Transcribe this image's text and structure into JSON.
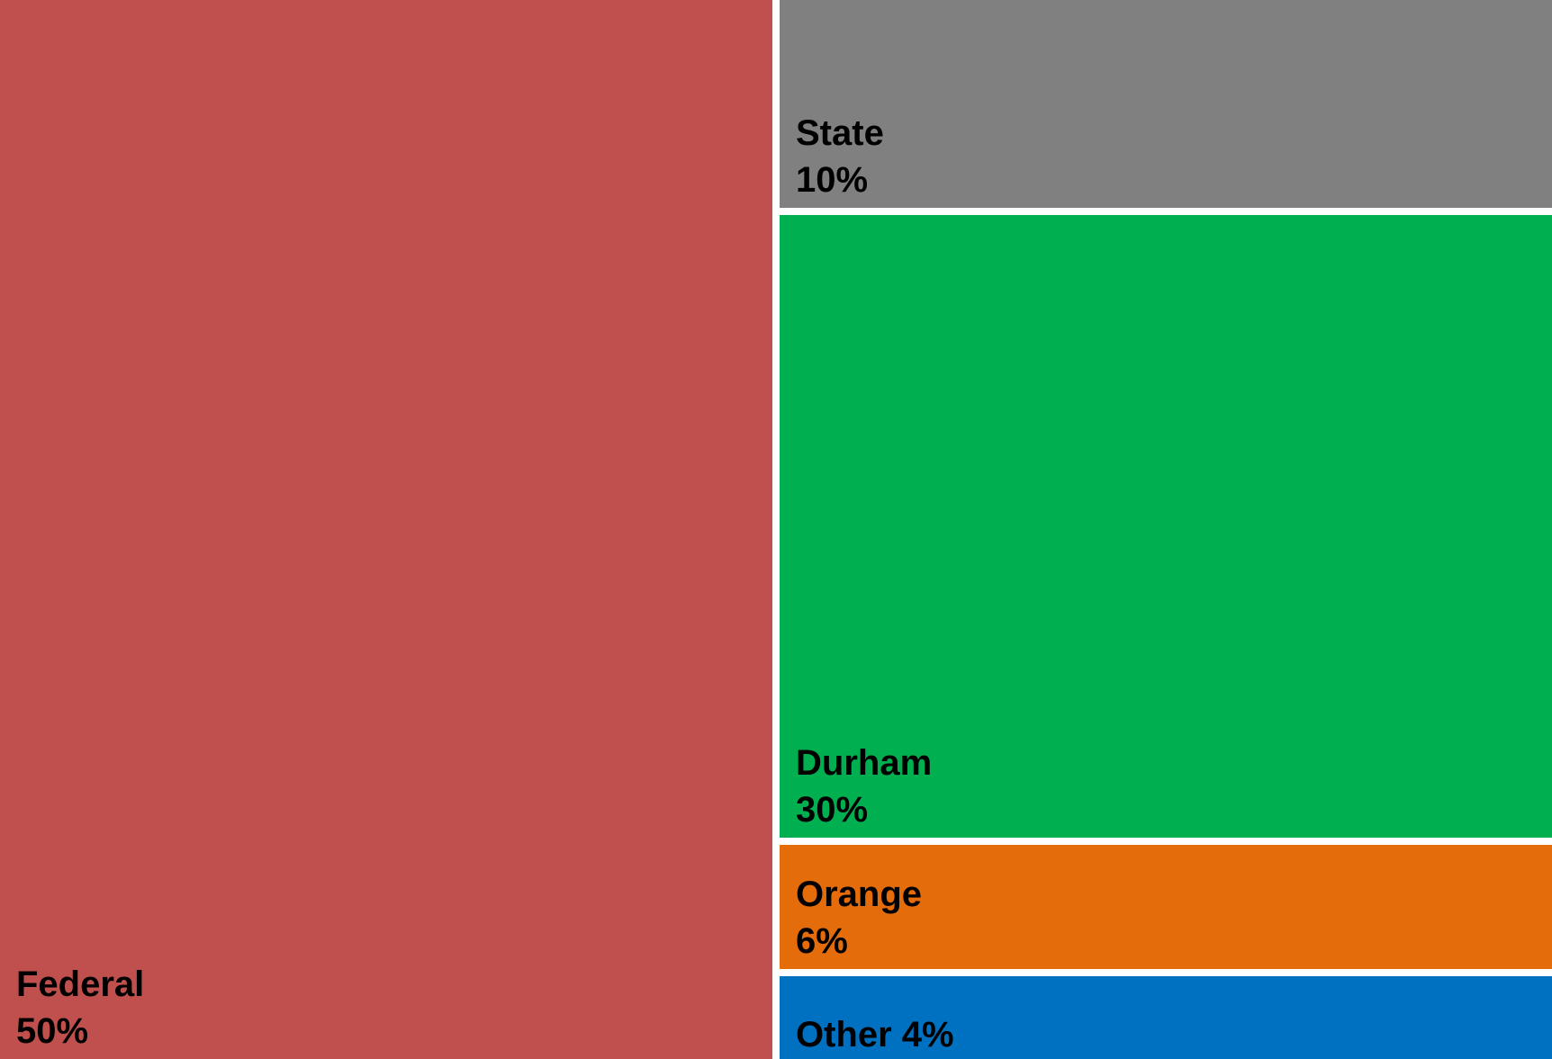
{
  "chart_data": {
    "type": "treemap",
    "title": "",
    "series": [
      {
        "categories": [
          "Federal",
          "State",
          "Durham",
          "Orange",
          "Other"
        ],
        "values": [
          50,
          10,
          30,
          6,
          4
        ],
        "value_labels": [
          "50%",
          "10%",
          "30%",
          "6%",
          "4%"
        ],
        "colors": [
          "#C0504D",
          "#808080",
          "#00B050",
          "#E46C0A",
          "#0070C0"
        ]
      }
    ],
    "label_style": {
      "Federal": "two-line",
      "State": "two-line",
      "Durham": "two-line",
      "Orange": "two-line",
      "Other": "one-line"
    }
  }
}
